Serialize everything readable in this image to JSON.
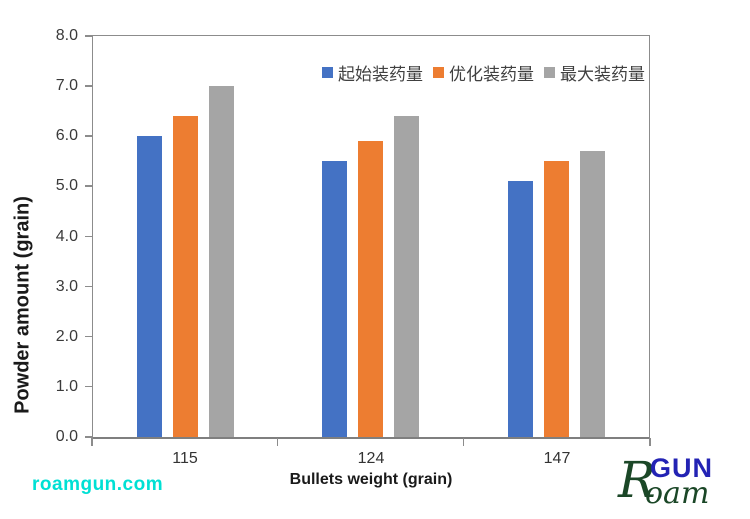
{
  "chart_data": {
    "type": "bar",
    "title": "",
    "xlabel": "Bullets weight (grain)",
    "ylabel": "Powder amount (grain)",
    "categories": [
      "115",
      "124",
      "147"
    ],
    "series": [
      {
        "name": "起始装药量",
        "color": "#4472C4",
        "values": [
          6.0,
          5.5,
          5.1
        ]
      },
      {
        "name": "优化装药量",
        "color": "#ED7D31",
        "values": [
          6.4,
          5.9,
          5.5
        ]
      },
      {
        "name": "最大装药量",
        "color": "#A5A5A5",
        "values": [
          7.0,
          6.4,
          5.7
        ]
      }
    ],
    "ylim": [
      0,
      8
    ],
    "ytick_step": 1,
    "ytick_decimals": 1,
    "grid": false,
    "legend_position": "top-right-inside"
  },
  "footer": {
    "watermark": "roamgun.com",
    "logo": {
      "script": "Roam",
      "caps": "GUN"
    }
  },
  "colors": {
    "axis_line": "#8C8C8C",
    "tick_text": "#3A3A3A",
    "watermark": "#00E0D4",
    "logo_green": "#1B4727",
    "logo_blue": "#2323B4"
  }
}
